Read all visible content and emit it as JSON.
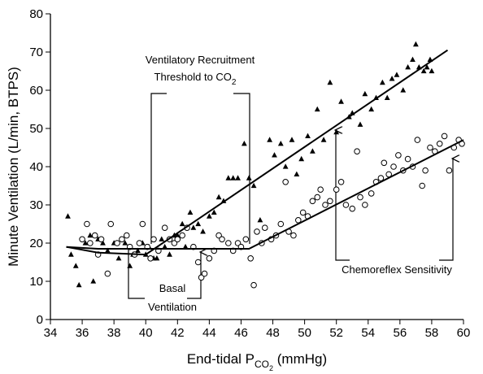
{
  "chart_data": {
    "type": "scatter",
    "xlabel": [
      "End-tidal P",
      "CO",
      "2",
      " (mmHg)"
    ],
    "ylabel": "Minute Ventilation (L/min, BTPS)",
    "xlim": [
      34,
      60
    ],
    "xticks": [
      34,
      36,
      38,
      40,
      42,
      44,
      46,
      48,
      50,
      52,
      54,
      56,
      58,
      60
    ],
    "ylim": [
      0,
      80
    ],
    "yticks": [
      0,
      10,
      20,
      30,
      40,
      50,
      60,
      70,
      80
    ],
    "series": [
      {
        "marker": "triangle",
        "color": "#000000",
        "x": [
          35.1,
          35.3,
          35.6,
          35.8,
          36.2,
          36.5,
          36.7,
          37,
          37.3,
          37.6,
          38,
          38.3,
          38.7,
          39,
          39.2,
          39.5,
          39.8,
          40,
          40.2,
          40.5,
          40.7,
          41,
          41.2,
          41.5,
          41.8,
          42,
          42.3,
          42.5,
          42.8,
          43,
          43.3,
          43.6,
          44,
          44.3,
          44.6,
          44.9,
          45.2,
          45.5,
          45.8,
          46.2,
          46.5,
          46.8,
          47.2,
          47.5,
          47.8,
          48.1,
          48.5,
          48.8,
          49.2,
          49.5,
          49.8,
          50.2,
          50.5,
          50.8,
          51.2,
          51.6,
          52,
          52.3,
          52.8,
          53,
          53.5,
          53.8,
          54.2,
          54.5,
          54.9,
          55.2,
          55.5,
          55.8,
          56.2,
          56.5,
          56.8,
          57,
          57.2,
          57.5,
          57.7,
          57.9,
          58
        ],
        "values": [
          27,
          17,
          14,
          9,
          20,
          22,
          10,
          21,
          20,
          18,
          20,
          16,
          20,
          14,
          17,
          18,
          20,
          17,
          19,
          16,
          16,
          21,
          19,
          17,
          22,
          22,
          25,
          19,
          28,
          24,
          25,
          23,
          27,
          28,
          32,
          31,
          37,
          37,
          37,
          46,
          37,
          35,
          26,
          24,
          47,
          43,
          46,
          40,
          47,
          38,
          42,
          48,
          44,
          55,
          47,
          62,
          49,
          57,
          53,
          54,
          51,
          59,
          55,
          58,
          62,
          58,
          63,
          64,
          60,
          66,
          68,
          72,
          66,
          65,
          66,
          68,
          65
        ]
      },
      {
        "marker": "circle",
        "color": "#000000",
        "x": [
          36,
          36.3,
          36.5,
          36.8,
          37,
          37.2,
          37.6,
          37.8,
          38.2,
          38.5,
          38.8,
          39,
          39.3,
          39.6,
          39.8,
          40.1,
          40.3,
          40.5,
          40.8,
          41.2,
          41.5,
          41.8,
          42,
          42.3,
          42.6,
          43,
          43.3,
          43.5,
          43.7,
          44,
          44.3,
          44.6,
          44.8,
          45.2,
          45.5,
          45.8,
          46,
          46.3,
          46.6,
          46.8,
          47,
          47.3,
          47.5,
          47.9,
          48.2,
          48.5,
          48.8,
          49,
          49.3,
          49.6,
          49.9,
          50.2,
          50.5,
          50.8,
          51,
          51.3,
          51.6,
          52,
          52.3,
          52.6,
          53,
          53.3,
          53.5,
          53.8,
          54.2,
          54.5,
          54.8,
          55,
          55.3,
          55.6,
          55.9,
          56.2,
          56.5,
          56.8,
          57.1,
          57.4,
          57.6,
          57.9,
          58.2,
          58.5,
          58.8,
          59.1,
          59.4,
          59.7,
          59.9
        ],
        "values": [
          21,
          25,
          20,
          22,
          17,
          21,
          12,
          25,
          20,
          21,
          22,
          19,
          17,
          20,
          25,
          19,
          16,
          21,
          18,
          24,
          21,
          20,
          21,
          22,
          24,
          19,
          15,
          11,
          12,
          16,
          18,
          22,
          21,
          20,
          18,
          20,
          19,
          21,
          16,
          9,
          23,
          20,
          24,
          21,
          22,
          25,
          36,
          23,
          22,
          26,
          28,
          27,
          31,
          32,
          34,
          30,
          31,
          34,
          36,
          30,
          29,
          44,
          32,
          30,
          33,
          36,
          37,
          41,
          38,
          40,
          43,
          39,
          42,
          40,
          47,
          35,
          39,
          45,
          44,
          46,
          48,
          39,
          45,
          47,
          46
        ]
      }
    ],
    "fits": [
      {
        "x": [
          35,
          37,
          40,
          59
        ],
        "values": [
          19,
          17.5,
          17,
          70.5
        ]
      },
      {
        "x": [
          35,
          37,
          40,
          46.5,
          60
        ],
        "values": [
          19,
          18.5,
          18.5,
          18.5,
          47
        ]
      }
    ],
    "annotations": {
      "threshold": [
        "Ventilatory Recruitment",
        "Threshold to CO",
        "2"
      ],
      "basal": [
        "Basal",
        "Ventilation"
      ],
      "chemoreflex": "Chemoreflex Sensitivity"
    }
  }
}
